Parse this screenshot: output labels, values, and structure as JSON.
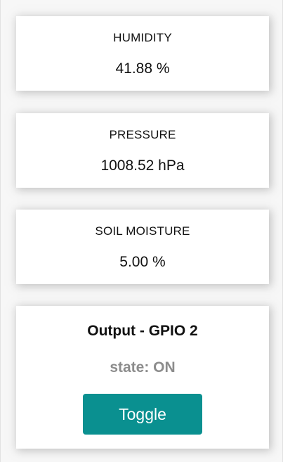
{
  "sensors": {
    "humidity": {
      "title": "HUMIDITY",
      "value": "41.88 %"
    },
    "pressure": {
      "title": "PRESSURE",
      "value": "1008.52 hPa"
    },
    "soil": {
      "title": "SOIL MOISTURE",
      "value": "5.00 %"
    }
  },
  "output": {
    "title": "Output - GPIO 2",
    "state": "state: ON",
    "button_label": "Toggle",
    "button_color": "#0a9090",
    "state_color": "#8c8c8c"
  }
}
